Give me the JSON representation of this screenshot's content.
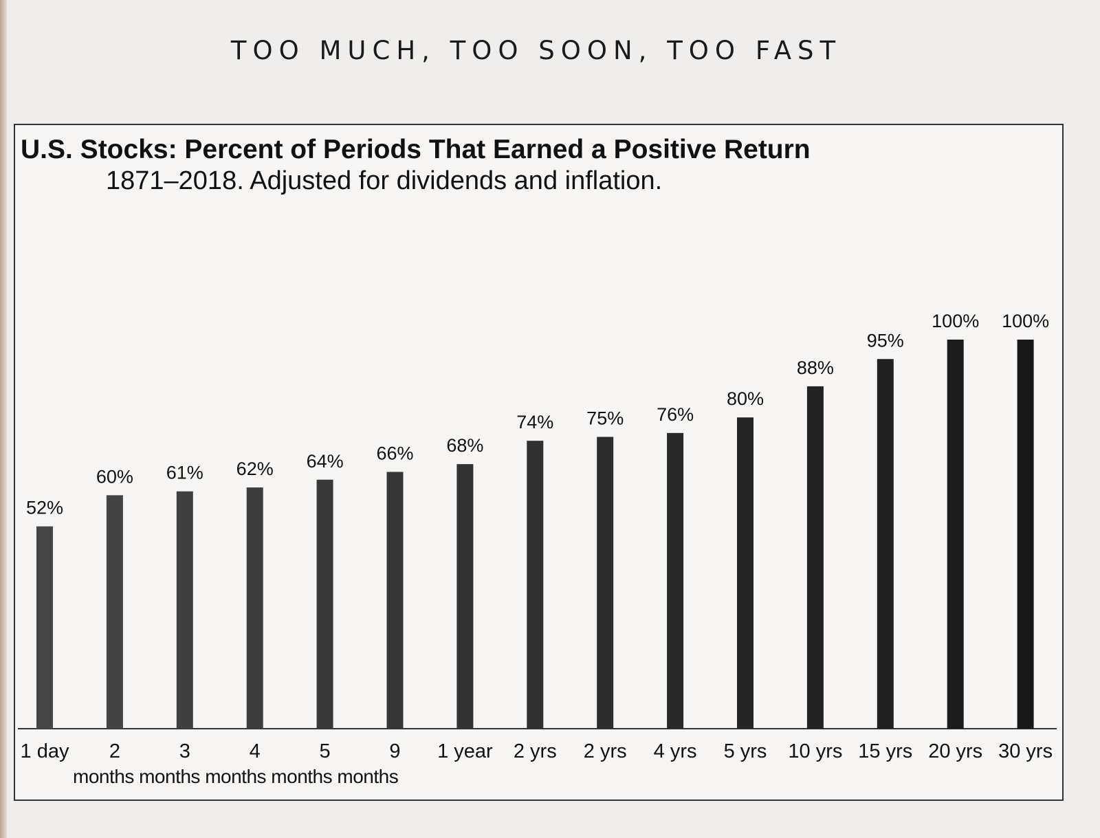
{
  "running_head": "TOO MUCH, TOO SOON, TOO FAST",
  "chart_data": {
    "type": "bar",
    "title": "U.S. Stocks: Percent of Periods That Earned a Positive Return",
    "subtitle": "1871–2018. Adjusted for dividends and inflation.",
    "categories": [
      "1 day",
      "2",
      "3",
      "4",
      "5",
      "9",
      "1 year",
      "2 yrs",
      "2 yrs",
      "4 yrs",
      "5 yrs",
      "10 yrs",
      "15 yrs",
      "20 yrs",
      "30 yrs"
    ],
    "category_sublabel": "months months months months months",
    "values": [
      52,
      60,
      61,
      62,
      64,
      66,
      68,
      74,
      75,
      76,
      80,
      88,
      95,
      100,
      100
    ],
    "data_labels": [
      "52%",
      "60%",
      "61%",
      "62%",
      "64%",
      "66%",
      "68%",
      "74%",
      "75%",
      "76%",
      "80%",
      "88%",
      "95%",
      "100%",
      "100%"
    ],
    "ylim": [
      0,
      100
    ],
    "grid": false,
    "legend": "none",
    "bar_color": "#3a3a3a"
  }
}
